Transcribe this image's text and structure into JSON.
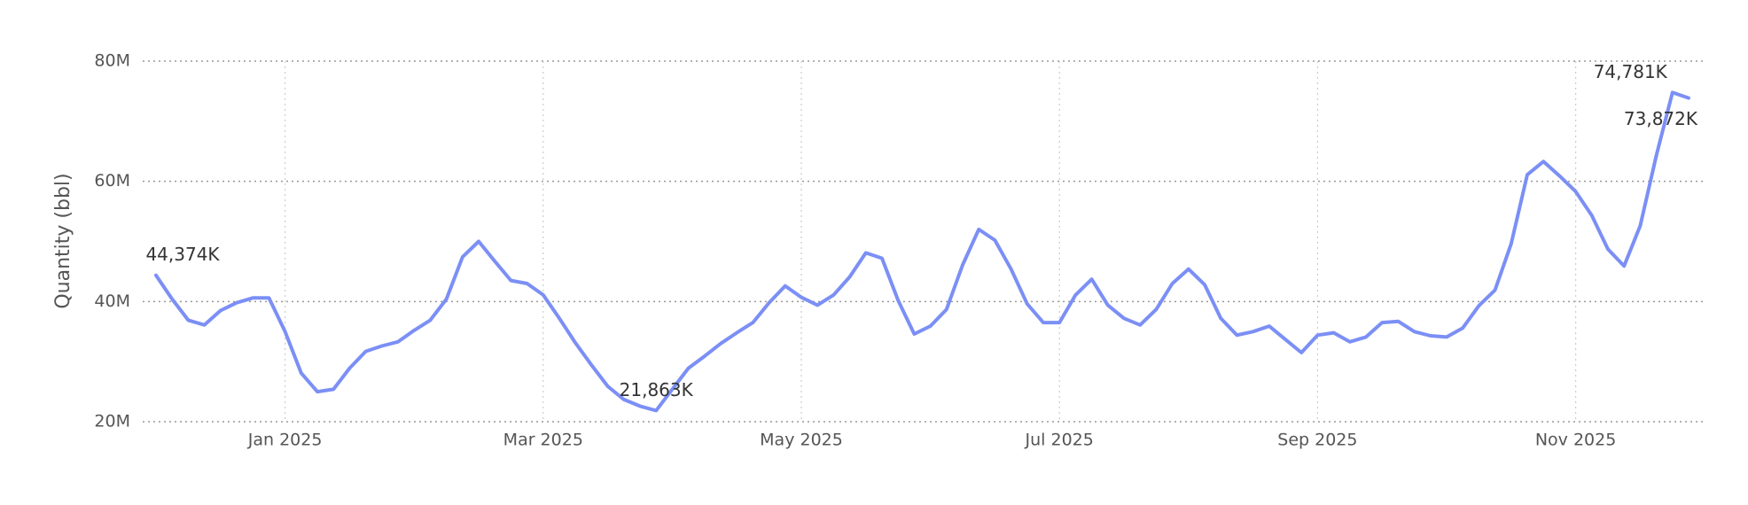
{
  "chart_data": {
    "type": "line",
    "y_label": "Quantity (bbl)",
    "categories": [
      null,
      null,
      null,
      null,
      null,
      null,
      null,
      null,
      "Jan 2025",
      null,
      null,
      null,
      null,
      null,
      null,
      null,
      null,
      null,
      null,
      null,
      null,
      null,
      null,
      null,
      "Mar 2025",
      null,
      null,
      null,
      null,
      null,
      null,
      null,
      null,
      null,
      null,
      null,
      null,
      null,
      null,
      null,
      "May 2025",
      null,
      null,
      null,
      null,
      null,
      null,
      null,
      null,
      null,
      null,
      null,
      null,
      null,
      null,
      null,
      "Jul 2025",
      null,
      null,
      null,
      null,
      null,
      null,
      null,
      null,
      null,
      null,
      null,
      null,
      null,
      null,
      null,
      "Sep 2025",
      null,
      null,
      null,
      null,
      null,
      null,
      null,
      null,
      null,
      null,
      null,
      null,
      null,
      null,
      null,
      "Nov 2025",
      null,
      null,
      null,
      null,
      null,
      null,
      null
    ],
    "series": [
      {
        "color": "#7b8ff5",
        "values": [
          44374000,
          40400000,
          36900000,
          36100000,
          38500000,
          39800000,
          40600000,
          40600000,
          35000000,
          28100000,
          25000000,
          25400000,
          28900000,
          31700000,
          32600000,
          33300000,
          35200000,
          36900000,
          40400000,
          47400000,
          50000000,
          46700000,
          43500000,
          43000000,
          41100000,
          37200000,
          33100000,
          29400000,
          25900000,
          23700000,
          22600000,
          21863000,
          25400000,
          28900000,
          30900000,
          33000000,
          34800000,
          36500000,
          39800000,
          42600000,
          40700000,
          39400000,
          41100000,
          44100000,
          48100000,
          47200000,
          40200000,
          34600000,
          35900000,
          38700000,
          46100000,
          52000000,
          50200000,
          45400000,
          39600000,
          36500000,
          36500000,
          41100000,
          43700000,
          39400000,
          37200000,
          36100000,
          38700000,
          43000000,
          45400000,
          42800000,
          37200000,
          34400000,
          35000000,
          35900000,
          33700000,
          31500000,
          34400000,
          34800000,
          33300000,
          34100000,
          36500000,
          36700000,
          35000000,
          34300000,
          34100000,
          35600000,
          39300000,
          41900000,
          49600000,
          61100000,
          63300000,
          60900000,
          58300000,
          54300000,
          48700000,
          45900000,
          52600000,
          64300000,
          74781000,
          73872000
        ],
        "value_labels": [
          "44,374K",
          null,
          null,
          null,
          null,
          null,
          null,
          null,
          null,
          null,
          null,
          null,
          null,
          null,
          null,
          null,
          null,
          null,
          null,
          null,
          null,
          null,
          null,
          null,
          null,
          null,
          null,
          null,
          null,
          null,
          null,
          "21,863K",
          null,
          null,
          null,
          null,
          null,
          null,
          null,
          null,
          null,
          null,
          null,
          null,
          null,
          null,
          null,
          null,
          null,
          null,
          null,
          null,
          null,
          null,
          null,
          null,
          null,
          null,
          null,
          null,
          null,
          null,
          null,
          null,
          null,
          null,
          null,
          null,
          null,
          null,
          null,
          null,
          null,
          null,
          null,
          null,
          null,
          null,
          null,
          null,
          null,
          null,
          null,
          null,
          null,
          null,
          null,
          null,
          null,
          null,
          null,
          null,
          null,
          null,
          "74,781K",
          "73,872K"
        ]
      }
    ],
    "ylim": [
      20000000,
      80000000
    ],
    "yticks": [
      {
        "value": 20000000,
        "label": "20M"
      },
      {
        "value": 40000000,
        "label": "40M"
      },
      {
        "value": 60000000,
        "label": "60M"
      },
      {
        "value": 80000000,
        "label": "80M"
      }
    ],
    "grid": true
  }
}
